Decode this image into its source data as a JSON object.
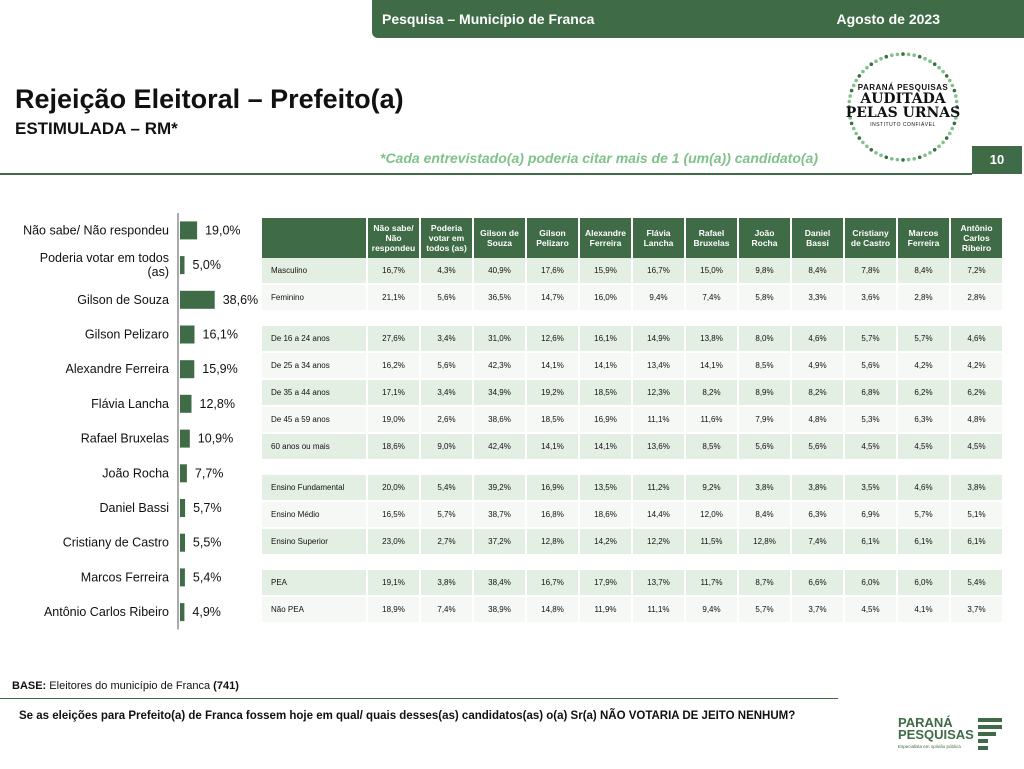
{
  "header": {
    "survey_label": "Pesquisa – Município de Franca",
    "date_label": "Agosto de 2023",
    "title": "Rejeição Eleitoral – Prefeito(a)",
    "subtitle": "ESTIMULADA – RM*",
    "note": "*Cada entrevistado(a) poderia citar mais de 1 (um(a)) candidato(a)",
    "page_number": "10"
  },
  "seal": {
    "line1": "PARANÁ PESQUISAS",
    "line2": "AUDITADA",
    "line3": "PELAS URNAS",
    "line4": "INSTITUTO CONFIÁVEL"
  },
  "colors": {
    "accent": "#3f6b47",
    "light_row": "#e4efe3",
    "note_green": "#7fc28b"
  },
  "chart_data": [
    {
      "type": "bar",
      "orientation": "horizontal",
      "categories": [
        "Não sabe/ Não respondeu",
        "Poderia votar em todos (as)",
        "Gilson de Souza",
        "Gilson Pelizaro",
        "Alexandre Ferreira",
        "Flávia Lancha",
        "Rafael Bruxelas",
        "João Rocha",
        "Daniel Bassi",
        "Cristiany de Castro",
        "Marcos Ferreira",
        "Antônio Carlos Ribeiro"
      ],
      "values": [
        19.0,
        5.0,
        38.6,
        16.1,
        15.9,
        12.8,
        10.9,
        7.7,
        5.7,
        5.5,
        5.4,
        4.9
      ],
      "value_labels": [
        "19,0%",
        "5,0%",
        "38,6%",
        "16,1%",
        "15,9%",
        "12,8%",
        "10,9%",
        "7,7%",
        "5,7%",
        "5,5%",
        "5,4%",
        "4,9%"
      ],
      "xlim": [
        0,
        40
      ]
    },
    {
      "type": "table",
      "columns": [
        "Não sabe/ Não respondeu",
        "Poderia votar em todos (as)",
        "Gilson de Souza",
        "Gilson Pelizaro",
        "Alexandre Ferreira",
        "Flávia Lancha",
        "Rafael Bruxelas",
        "João Rocha",
        "Daniel Bassi",
        "Cristiany de Castro",
        "Marcos Ferreira",
        "Antônio Carlos Ribeiro"
      ],
      "groups": [
        {
          "rows": [
            {
              "label": "Masculino",
              "values": [
                "16,7%",
                "4,3%",
                "40,9%",
                "17,6%",
                "15,9%",
                "16,7%",
                "15,0%",
                "9,8%",
                "8,4%",
                "7,8%",
                "8,4%",
                "7,2%"
              ]
            },
            {
              "label": "Feminino",
              "values": [
                "21,1%",
                "5,6%",
                "36,5%",
                "14,7%",
                "16,0%",
                "9,4%",
                "7,4%",
                "5,8%",
                "3,3%",
                "3,6%",
                "2,8%",
                "2,8%"
              ]
            }
          ]
        },
        {
          "rows": [
            {
              "label": "De 16 a 24 anos",
              "values": [
                "27,6%",
                "3,4%",
                "31,0%",
                "12,6%",
                "16,1%",
                "14,9%",
                "13,8%",
                "8,0%",
                "4,6%",
                "5,7%",
                "5,7%",
                "4,6%"
              ]
            },
            {
              "label": "De 25 a 34 anos",
              "values": [
                "16,2%",
                "5,6%",
                "42,3%",
                "14,1%",
                "14,1%",
                "13,4%",
                "14,1%",
                "8,5%",
                "4,9%",
                "5,6%",
                "4,2%",
                "4,2%"
              ]
            },
            {
              "label": "De 35 a 44 anos",
              "values": [
                "17,1%",
                "3,4%",
                "34,9%",
                "19,2%",
                "18,5%",
                "12,3%",
                "8,2%",
                "8,9%",
                "8,2%",
                "6,8%",
                "6,2%",
                "6,2%"
              ]
            },
            {
              "label": "De 45 a 59 anos",
              "values": [
                "19,0%",
                "2,6%",
                "38,6%",
                "18,5%",
                "16,9%",
                "11,1%",
                "11,6%",
                "7,9%",
                "4,8%",
                "5,3%",
                "6,3%",
                "4,8%"
              ]
            },
            {
              "label": "60 anos ou mais",
              "values": [
                "18,6%",
                "9,0%",
                "42,4%",
                "14,1%",
                "14,1%",
                "13,6%",
                "8,5%",
                "5,6%",
                "5,6%",
                "4,5%",
                "4,5%",
                "4,5%"
              ]
            }
          ]
        },
        {
          "rows": [
            {
              "label": "Ensino Fundamental",
              "values": [
                "20,0%",
                "5,4%",
                "39,2%",
                "16,9%",
                "13,5%",
                "11,2%",
                "9,2%",
                "3,8%",
                "3,8%",
                "3,5%",
                "4,6%",
                "3,8%"
              ]
            },
            {
              "label": "Ensino Médio",
              "values": [
                "16,5%",
                "5,7%",
                "38,7%",
                "16,8%",
                "18,6%",
                "14,4%",
                "12,0%",
                "8,4%",
                "6,3%",
                "6,9%",
                "5,7%",
                "5,1%"
              ]
            },
            {
              "label": "Ensino Superior",
              "values": [
                "23,0%",
                "2,7%",
                "37,2%",
                "12,8%",
                "14,2%",
                "12,2%",
                "11,5%",
                "12,8%",
                "7,4%",
                "6,1%",
                "6,1%",
                "6,1%"
              ]
            }
          ]
        },
        {
          "rows": [
            {
              "label": "PEA",
              "values": [
                "19,1%",
                "3,8%",
                "38,4%",
                "16,7%",
                "17,9%",
                "13,7%",
                "11,7%",
                "8,7%",
                "6,6%",
                "6,0%",
                "6,0%",
                "5,4%"
              ]
            },
            {
              "label": "Não PEA",
              "values": [
                "18,9%",
                "7,4%",
                "38,9%",
                "14,8%",
                "11,9%",
                "11,1%",
                "9,4%",
                "5,7%",
                "3,7%",
                "4,5%",
                "4,1%",
                "3,7%"
              ]
            }
          ]
        }
      ]
    }
  ],
  "footer": {
    "base_label": "BASE:",
    "base_text": "Eleitores do município de Franca",
    "base_count": "(741)",
    "question": "Se as eleições para Prefeito(a) de Franca fossem hoje em qual/ quais desses(as) candidatos(as) o(a) Sr(a) NÃO VOTARIA DE JEITO NENHUM?",
    "logo_word1": "PARANÁ",
    "logo_word2": "PESQUISAS",
    "logo_tagline": "Especialista em opinião pública"
  }
}
